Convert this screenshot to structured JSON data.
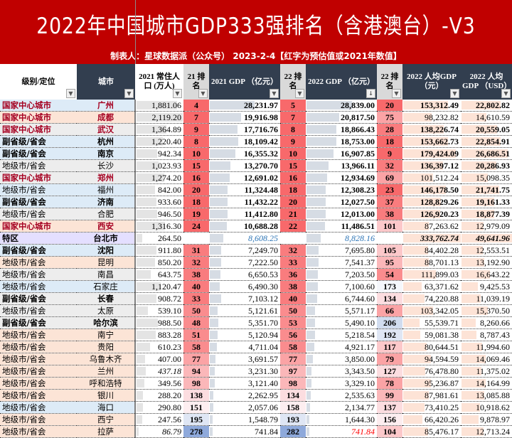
{
  "header": {
    "title": "2022年中国城市GDP333强排名（含港澳台）-V3",
    "subtitle": "制表人：星球数据派（公众号） 2023-2-4【红字为预估值或2021年数值】"
  },
  "columns": [
    {
      "label": "级别/定位",
      "filter": "filter-active"
    },
    {
      "label": "城市",
      "filter": "dropdown"
    },
    {
      "label": "2021 常住人口 (万人)",
      "filter": "dropdown"
    },
    {
      "label": "21 排名",
      "filter": "dropdown"
    },
    {
      "label": "2021 GDP （亿元）",
      "filter": "dropdown"
    },
    {
      "label": "22 排名",
      "filter": "dropdown"
    },
    {
      "label": "2022 GDP （亿元）",
      "filter": "sort-descending"
    },
    {
      "label": "22 排名",
      "filter": "dropdown"
    },
    {
      "label": "2022 人均GDP （元）",
      "filter": "dropdown"
    },
    {
      "label": "2022 人均GDP （USD）",
      "filter": "dropdown"
    }
  ],
  "colors": {
    "title_bg": "#c00000",
    "header_dark": "#323e4f",
    "national_center_text": "#a50021",
    "estimate_red": "#ff0000",
    "taiwan_blue": "#2e75b6"
  },
  "rows": [
    {
      "level": "国家中心城市",
      "city": "广州",
      "pop": "1,881.06",
      "r21": "4",
      "gdp21": "28,231.97",
      "r22a": "5",
      "gdp22": "28,839.00",
      "r22b": "20",
      "pc_cny": "153,312.49",
      "pc_usd": "22,802.82"
    },
    {
      "level": "国家中心城市",
      "city": "成都",
      "pop": "2,119.20",
      "r21": "7",
      "gdp21": "19,916.98",
      "r22a": "7",
      "gdp22": "20,817.50",
      "r22b": "75",
      "pc_cny": "98,232.82",
      "pc_usd": "14,610.59"
    },
    {
      "level": "国家中心城市",
      "city": "武汉",
      "pop": "1,364.89",
      "r21": "9",
      "gdp21": "17,716.76",
      "r22a": "8",
      "gdp22": "18,866.43",
      "r22b": "28",
      "pc_cny": "138,226.74",
      "pc_usd": "20,559.05"
    },
    {
      "level": "副省级/省会",
      "city": "杭州",
      "pop": "1,220.40",
      "r21": "8",
      "gdp21": "18,109.42",
      "r22a": "9",
      "gdp22": "18,753.00",
      "r22b": "18",
      "pc_cny": "153,662.73",
      "pc_usd": "22,854.91"
    },
    {
      "level": "副省级/省会",
      "city": "南京",
      "pop": "942.34",
      "r21": "10",
      "gdp21": "16,355.32",
      "r22a": "10",
      "gdp22": "16,907.85",
      "r22b": "9",
      "pc_cny": "179,424.09",
      "pc_usd": "26,686.51"
    },
    {
      "level": "地级市/省会",
      "city": "长沙",
      "pop": "1,023.93",
      "r21": "15",
      "gdp21": "13,270.70",
      "r22a": "15",
      "gdp22": "13,966.11",
      "r22b": "32",
      "pc_cny": "136,397.12",
      "pc_usd": "20,286.93"
    },
    {
      "level": "国家中心城市",
      "city": "郑州",
      "pop": "1,274.20",
      "r21": "16",
      "gdp21": "12,691.02",
      "r22a": "16",
      "gdp22": "12,934.69",
      "r22b": "69",
      "pc_cny": "101,512.24",
      "pc_usd": "15,098.35"
    },
    {
      "level": "地级市/省会",
      "city": "福州",
      "pop": "842.00",
      "r21": "20",
      "gdp21": "11,324.48",
      "r22a": "18",
      "gdp22": "12,308.23",
      "r22b": "23",
      "pc_cny": "146,178.50",
      "pc_usd": "21,741.75"
    },
    {
      "level": "副省级/省会",
      "city": "济南",
      "pop": "933.60",
      "r21": "18",
      "gdp21": "11,432.22",
      "r22a": "20",
      "gdp22": "12,027.50",
      "r22b": "37",
      "pc_cny": "128,829.26",
      "pc_usd": "19,161.33"
    },
    {
      "level": "地级市/省会",
      "city": "合肥",
      "pop": "946.50",
      "r21": "19",
      "gdp21": "11,412.80",
      "r22a": "21",
      "gdp22": "12,013.00",
      "r22b": "38",
      "pc_cny": "126,920.23",
      "pc_usd": "18,877.39"
    },
    {
      "level": "国家中心城市",
      "city": "西安",
      "pop": "1,316.30",
      "r21": "24",
      "gdp21": "10,688.28",
      "r22a": "22",
      "gdp22": "11,486.51",
      "r22b": "101",
      "pc_cny": "87,263.62",
      "pc_usd": "12,979.09"
    },
    {
      "level": "特区",
      "city": "台北市",
      "pop": "264.50",
      "r21": "",
      "gdp21": "8,608.25",
      "r22a": "",
      "gdp22": "8,828.16",
      "r22b": "",
      "pc_cny": "333,762.74",
      "pc_usd": "49,641.96"
    },
    {
      "level": "副省级/省会",
      "city": "沈阳",
      "pop": "911.80",
      "r21": "31",
      "gdp21": "7,249.70",
      "r22a": "32",
      "gdp22": "7,695.80",
      "r22b": "105",
      "pc_cny": "84,402.28",
      "pc_usd": "12,553.51"
    },
    {
      "level": "地级市/省会",
      "city": "昆明",
      "pop": "850.20",
      "r21": "32",
      "gdp21": "7,222.50",
      "r22a": "33",
      "gdp22": "7,541.37",
      "r22b": "95",
      "pc_cny": "88,701.13",
      "pc_usd": "13,192.90"
    },
    {
      "level": "地级市/省会",
      "city": "南昌",
      "pop": "643.75",
      "r21": "38",
      "gdp21": "6,650.53",
      "r22a": "36",
      "gdp22": "7,203.50",
      "r22b": "54",
      "pc_cny": "111,899.03",
      "pc_usd": "16,643.22"
    },
    {
      "level": "地级市/省会",
      "city": "石家庄",
      "pop": "1,120.47",
      "r21": "40",
      "gdp21": "6,490.30",
      "r22a": "38",
      "gdp22": "7,100.60",
      "r22b": "173",
      "pc_cny": "63,371.62",
      "pc_usd": "9,425.53"
    },
    {
      "level": "副省级/省会",
      "city": "长春",
      "pop": "908.72",
      "r21": "33",
      "gdp21": "7,103.12",
      "r22a": "40",
      "gdp22": "6,744.60",
      "r22b": "134",
      "pc_cny": "74,220.88",
      "pc_usd": "11,039.19"
    },
    {
      "level": "地级市/省会",
      "city": "太原",
      "pop": "539.10",
      "r21": "50",
      "gdp21": "5,121.61",
      "r22a": "50",
      "gdp22": "5,571.17",
      "r22b": "66",
      "pc_cny": "103,342.05",
      "pc_usd": "15,370.50"
    },
    {
      "level": "副省级/省会",
      "city": "哈尔滨",
      "pop": "988.50",
      "r21": "48",
      "gdp21": "5,351.70",
      "r22a": "53",
      "gdp22": "5,490.10",
      "r22b": "206",
      "pc_cny": "55,539.71",
      "pc_usd": "8,260.66"
    },
    {
      "level": "地级市/省会",
      "city": "南宁",
      "pop": "883.28",
      "r21": "51",
      "gdp21": "5,120.94",
      "r22a": "56",
      "gdp22": "5,218.54",
      "r22b": "192",
      "pc_cny": "59,081.38",
      "pc_usd": "8,787.43"
    },
    {
      "level": "地级市/省会",
      "city": "贵阳",
      "pop": "610.23",
      "r21": "58",
      "gdp21": "4,711.04",
      "r22a": "58",
      "gdp22": "4,921.17",
      "r22b": "117",
      "pc_cny": "80,644.51",
      "pc_usd": "11,994.60"
    },
    {
      "level": "地级市/省会",
      "city": "乌鲁木齐",
      "pop": "407.00",
      "r21": "77",
      "gdp21": "3,691.57",
      "r22a": "77",
      "gdp22": "3,850.00",
      "r22b": "79",
      "pc_cny": "94,594.59",
      "pc_usd": "14,069.46"
    },
    {
      "level": "地级市/省会",
      "city": "兰州",
      "pop": "437.18",
      "r21": "94",
      "gdp21": "3,231.30",
      "r22a": "97",
      "gdp22": "3,343.50",
      "r22b": "127",
      "pc_cny": "76,478.80",
      "pc_usd": "11,375.02"
    },
    {
      "level": "地级市/省会",
      "city": "呼和浩特",
      "pop": "349.56",
      "r21": "98",
      "gdp21": "3,121.40",
      "r22a": "98",
      "gdp22": "3,329.10",
      "r22b": "78",
      "pc_cny": "95,236.87",
      "pc_usd": "14,164.99"
    },
    {
      "level": "地级市/省会",
      "city": "银川",
      "pop": "288.20",
      "r21": "138",
      "gdp21": "2,262.95",
      "r22a": "134",
      "gdp22": "2,535.63",
      "r22b": "99",
      "pc_cny": "87,981.61",
      "pc_usd": "13,085.88"
    },
    {
      "level": "地级市/省会",
      "city": "海口",
      "pop": "290.80",
      "r21": "151",
      "gdp21": "2,057.06",
      "r22a": "158",
      "gdp22": "2,134.77",
      "r22b": "137",
      "pc_cny": "73,410.25",
      "pc_usd": "10,918.62"
    },
    {
      "level": "地级市/省会",
      "city": "西宁",
      "pop": "247.56",
      "r21": "195",
      "gdp21": "1,548.79",
      "r22a": "193",
      "gdp22": "1,644.30",
      "r22b": "156",
      "pc_cny": "66,420.26",
      "pc_usd": "9,878.97"
    },
    {
      "level": "地级市/省会",
      "city": "拉萨",
      "pop": "86.79",
      "r21": "278",
      "gdp21": "741.84",
      "r22a": "282",
      "gdp22": "741.84",
      "r22b": "104",
      "pc_cny": "85,476.17",
      "pc_usd": "12,713.24"
    }
  ]
}
